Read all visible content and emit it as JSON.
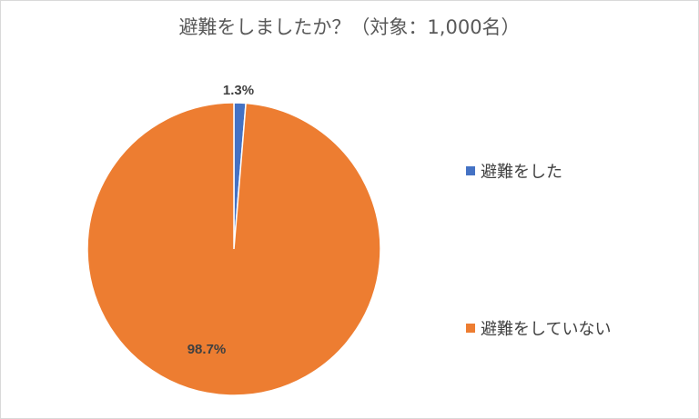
{
  "chart_data": {
    "type": "pie",
    "title": "避難をしましたか？（対象：1,000名）",
    "categories": [
      "避難をした",
      "避難をしていない"
    ],
    "values": [
      1.3,
      98.7
    ],
    "labels": [
      "1.3%",
      "98.7%"
    ],
    "colors": [
      "#4472C4",
      "#ED7D31"
    ],
    "legend": "right"
  }
}
